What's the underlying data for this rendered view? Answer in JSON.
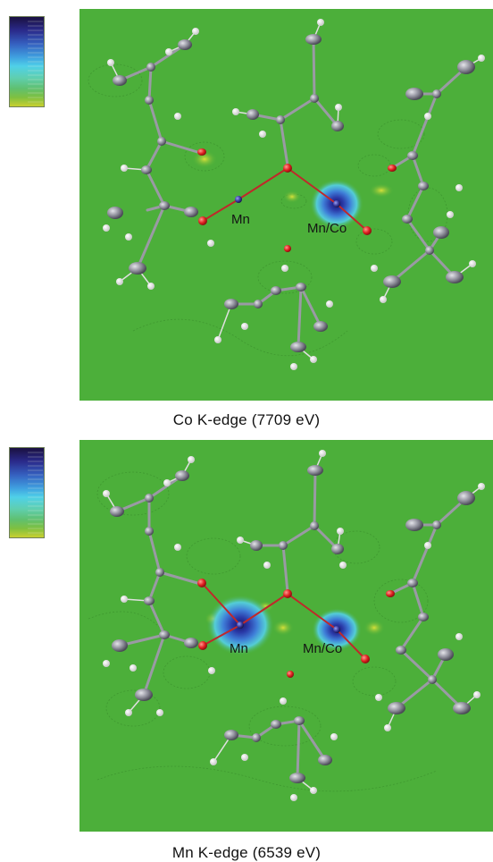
{
  "panels": [
    {
      "id": "co",
      "caption": "Co K-edge (7709 eV)",
      "atom_labels": [
        "Mn",
        "Mn/Co"
      ],
      "hotspot": "Mn/Co"
    },
    {
      "id": "mn",
      "caption": "Mn K-edge (6539 eV)",
      "atom_labels": [
        "Mn",
        "Mn/Co"
      ],
      "hotspot": "both"
    }
  ],
  "colors": {
    "background": "#4caf3a",
    "bond": "#c0282a",
    "oxygen": "#e02020",
    "carbon": "#8f8f9a",
    "hydrogen": "#f2f2f2",
    "metal": "#3a3aa0",
    "hot_core": "#1c1c70",
    "hot_mid": "#3f7fd8",
    "hot_edge": "#55d0e8"
  },
  "colorscale": [
    "#1a1040",
    "#2a2a8a",
    "#3560c0",
    "#3fa0e0",
    "#4fd0e8",
    "#5fcfb0",
    "#5fc070",
    "#7fc040",
    "#c8d030"
  ]
}
